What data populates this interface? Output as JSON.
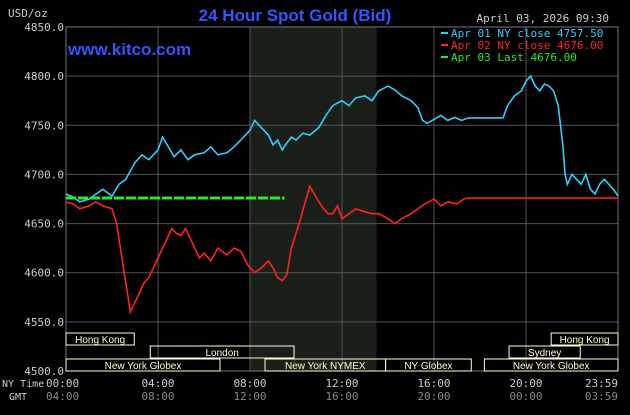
{
  "header": {
    "title": "24 Hour Spot Gold (Bid)",
    "unit_label": "USD/oz",
    "date_time": "April 03, 2026 09:30",
    "watermark": "www.kitco.com"
  },
  "legend": [
    {
      "label": "Apr 01 NY close 4757.50",
      "color": "#33ccff"
    },
    {
      "label": "Apr 02 NY close 4676.00",
      "color": "#ff2222"
    },
    {
      "label": "Apr 03 Last 4676.00",
      "color": "#22ee22"
    }
  ],
  "sessions": [
    {
      "label": "Hong Kong",
      "start": 0.0,
      "end": 4.7
    },
    {
      "label": "London",
      "start": 5.8,
      "end": 15.7
    },
    {
      "label": "New York Globex",
      "start": 0.0,
      "end": 10.6
    },
    {
      "label": "New York NYMEX",
      "start": 13.7,
      "end": 22.0
    },
    {
      "label": "NY Globex",
      "start": 22.0,
      "end": 27.9
    },
    {
      "label": "Hong Kong",
      "start": 33.4,
      "end": 38.0
    },
    {
      "label": "Sydney",
      "start": 30.5,
      "end": 35.4
    },
    {
      "label": "New York Globex",
      "start": 28.8,
      "end": 38.0
    }
  ],
  "x_axis": {
    "row1_label": "NY Time",
    "row2_label": "GMT",
    "ny_ticks": [
      "00:00",
      "04:00",
      "08:00",
      "12:00",
      "16:00",
      "20:00",
      "23:59"
    ],
    "gmt_ticks": [
      "04:00",
      "08:00",
      "12:00",
      "16:00",
      "20:00",
      "00:00",
      "03:59"
    ]
  },
  "colors": {
    "background": "#000000",
    "grid": "#555555",
    "title": "#3355ff",
    "date_time": "#cccccc",
    "shaded_region": "#1a1f1a",
    "session_box": "#ffffcc"
  },
  "chart_data": {
    "type": "line",
    "title": "24 Hour Spot Gold (Bid)",
    "ylabel": "USD/oz",
    "xlabel": "",
    "ylim": [
      4500,
      4850
    ],
    "xlim_hours": [
      0,
      24
    ],
    "y_ticks": [
      4500,
      4550,
      4600,
      4650,
      4700,
      4750,
      4800,
      4850
    ],
    "y_tick_labels": [
      "4500.0",
      "4550.0",
      "4600.0",
      "4650.0",
      "4700.0",
      "4750.0",
      "4800.0",
      "4850.0"
    ],
    "shaded_hours": [
      8.0,
      13.5
    ],
    "grid": true,
    "legend_position": "top-right",
    "series": [
      {
        "name": "Apr 01 NY close 4757.50",
        "color": "#33ccff",
        "points": [
          [
            0,
            4680
          ],
          [
            0.3,
            4677
          ],
          [
            0.6,
            4672
          ],
          [
            1.0,
            4675
          ],
          [
            1.3,
            4680
          ],
          [
            1.6,
            4685
          ],
          [
            2.0,
            4678
          ],
          [
            2.3,
            4690
          ],
          [
            2.6,
            4695
          ],
          [
            3.0,
            4712
          ],
          [
            3.3,
            4720
          ],
          [
            3.6,
            4715
          ],
          [
            4.0,
            4725
          ],
          [
            4.2,
            4738
          ],
          [
            4.4,
            4730
          ],
          [
            4.7,
            4718
          ],
          [
            5.0,
            4725
          ],
          [
            5.3,
            4715
          ],
          [
            5.6,
            4720
          ],
          [
            6.0,
            4722
          ],
          [
            6.3,
            4728
          ],
          [
            6.6,
            4720
          ],
          [
            7.0,
            4722
          ],
          [
            7.3,
            4728
          ],
          [
            7.6,
            4735
          ],
          [
            7.8,
            4740
          ],
          [
            8.0,
            4745
          ],
          [
            8.2,
            4755
          ],
          [
            8.4,
            4750
          ],
          [
            8.6,
            4745
          ],
          [
            8.8,
            4740
          ],
          [
            9.0,
            4730
          ],
          [
            9.2,
            4735
          ],
          [
            9.4,
            4725
          ],
          [
            9.6,
            4732
          ],
          [
            9.8,
            4738
          ],
          [
            10.0,
            4735
          ],
          [
            10.3,
            4742
          ],
          [
            10.6,
            4740
          ],
          [
            11.0,
            4748
          ],
          [
            11.3,
            4760
          ],
          [
            11.6,
            4770
          ],
          [
            12.0,
            4775
          ],
          [
            12.3,
            4770
          ],
          [
            12.6,
            4778
          ],
          [
            13.0,
            4780
          ],
          [
            13.3,
            4775
          ],
          [
            13.6,
            4785
          ],
          [
            14.0,
            4790
          ],
          [
            14.3,
            4786
          ],
          [
            14.6,
            4780
          ],
          [
            15.0,
            4775
          ],
          [
            15.3,
            4768
          ],
          [
            15.5,
            4755
          ],
          [
            15.7,
            4752
          ],
          [
            16.0,
            4756
          ],
          [
            16.3,
            4760
          ],
          [
            16.6,
            4755
          ],
          [
            16.9,
            4758
          ],
          [
            17.2,
            4755
          ],
          [
            17.5,
            4757.5
          ],
          [
            18.0,
            4757.5
          ],
          [
            18.5,
            4757.5
          ],
          [
            19.0,
            4757.5
          ],
          [
            19.2,
            4770
          ],
          [
            19.5,
            4780
          ],
          [
            19.8,
            4785
          ],
          [
            20.0,
            4795
          ],
          [
            20.2,
            4800
          ],
          [
            20.4,
            4790
          ],
          [
            20.6,
            4785
          ],
          [
            20.8,
            4792
          ],
          [
            21.0,
            4790
          ],
          [
            21.2,
            4785
          ],
          [
            21.4,
            4770
          ],
          [
            21.5,
            4750
          ],
          [
            21.6,
            4730
          ],
          [
            21.7,
            4700
          ],
          [
            21.8,
            4690
          ],
          [
            22.0,
            4700
          ],
          [
            22.2,
            4695
          ],
          [
            22.4,
            4690
          ],
          [
            22.6,
            4700
          ],
          [
            22.8,
            4685
          ],
          [
            23.0,
            4680
          ],
          [
            23.2,
            4690
          ],
          [
            23.4,
            4695
          ],
          [
            23.6,
            4690
          ],
          [
            23.8,
            4685
          ],
          [
            24.0,
            4678
          ]
        ]
      },
      {
        "name": "Apr 02 NY close 4676.00",
        "color": "#ff2222",
        "points": [
          [
            0,
            4672
          ],
          [
            0.3,
            4670
          ],
          [
            0.6,
            4665
          ],
          [
            1.0,
            4668
          ],
          [
            1.3,
            4672
          ],
          [
            1.6,
            4668
          ],
          [
            2.0,
            4665
          ],
          [
            2.2,
            4650
          ],
          [
            2.4,
            4620
          ],
          [
            2.6,
            4590
          ],
          [
            2.8,
            4560
          ],
          [
            3.0,
            4570
          ],
          [
            3.2,
            4580
          ],
          [
            3.4,
            4590
          ],
          [
            3.6,
            4595
          ],
          [
            3.8,
            4605
          ],
          [
            4.0,
            4615
          ],
          [
            4.2,
            4625
          ],
          [
            4.4,
            4635
          ],
          [
            4.6,
            4645
          ],
          [
            4.8,
            4640
          ],
          [
            5.0,
            4638
          ],
          [
            5.2,
            4645
          ],
          [
            5.4,
            4635
          ],
          [
            5.6,
            4625
          ],
          [
            5.8,
            4615
          ],
          [
            6.0,
            4620
          ],
          [
            6.3,
            4612
          ],
          [
            6.6,
            4625
          ],
          [
            7.0,
            4618
          ],
          [
            7.3,
            4625
          ],
          [
            7.6,
            4622
          ],
          [
            7.9,
            4608
          ],
          [
            8.2,
            4600
          ],
          [
            8.5,
            4605
          ],
          [
            8.8,
            4612
          ],
          [
            9.0,
            4605
          ],
          [
            9.2,
            4595
          ],
          [
            9.4,
            4592
          ],
          [
            9.6,
            4598
          ],
          [
            9.8,
            4625
          ],
          [
            10.0,
            4640
          ],
          [
            10.2,
            4655
          ],
          [
            10.4,
            4672
          ],
          [
            10.6,
            4688
          ],
          [
            10.8,
            4680
          ],
          [
            11.0,
            4672
          ],
          [
            11.2,
            4665
          ],
          [
            11.4,
            4660
          ],
          [
            11.6,
            4660
          ],
          [
            11.8,
            4668
          ],
          [
            12.0,
            4655
          ],
          [
            12.3,
            4660
          ],
          [
            12.6,
            4665
          ],
          [
            13.0,
            4662
          ],
          [
            13.3,
            4660
          ],
          [
            13.6,
            4660
          ],
          [
            14.0,
            4655
          ],
          [
            14.3,
            4650
          ],
          [
            14.6,
            4655
          ],
          [
            15.0,
            4660
          ],
          [
            15.3,
            4665
          ],
          [
            15.6,
            4670
          ],
          [
            16.0,
            4675
          ],
          [
            16.3,
            4668
          ],
          [
            16.6,
            4672
          ],
          [
            17.0,
            4670
          ],
          [
            17.3,
            4675
          ],
          [
            17.5,
            4676
          ],
          [
            18.0,
            4676
          ],
          [
            19.0,
            4676
          ],
          [
            20.0,
            4676
          ],
          [
            21.0,
            4676
          ],
          [
            22.0,
            4676
          ],
          [
            23.0,
            4676
          ],
          [
            24.0,
            4676
          ]
        ]
      },
      {
        "name": "Apr 03 Last 4676.00",
        "color": "#22ee22",
        "dashed": true,
        "points": [
          [
            0,
            4676
          ],
          [
            9.5,
            4676
          ]
        ]
      }
    ]
  }
}
